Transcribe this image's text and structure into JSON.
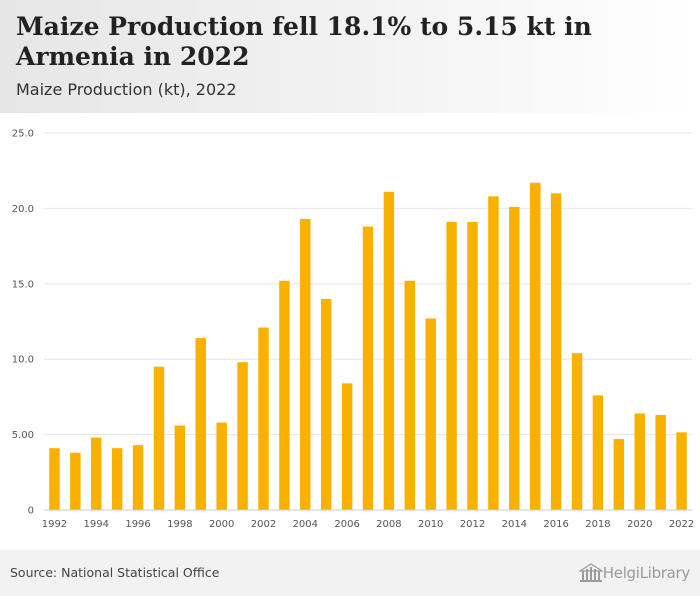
{
  "header": {
    "title": "Maize Production fell 18.1% to 5.15 kt in Armenia in 2022",
    "subtitle": "Maize Production (kt), 2022"
  },
  "footer": {
    "source": "Source: National Statistical Office",
    "brand": "HelgiLibrary"
  },
  "colors": {
    "bar": "#F9B100",
    "grid": "#e6e6e6",
    "axis_text": "#555555"
  },
  "chart_data": {
    "type": "bar",
    "title": "Maize Production fell 18.1% to 5.15 kt in Armenia in 2022",
    "subtitle": "Maize Production (kt), 2022",
    "xlabel": "",
    "ylabel": "",
    "categories": [
      "1992",
      "1993",
      "1994",
      "1995",
      "1996",
      "1997",
      "1998",
      "1999",
      "2000",
      "2001",
      "2002",
      "2003",
      "2004",
      "2005",
      "2006",
      "2007",
      "2008",
      "2009",
      "2010",
      "2011",
      "2012",
      "2013",
      "2014",
      "2015",
      "2016",
      "2017",
      "2018",
      "2019",
      "2020",
      "2021",
      "2022"
    ],
    "x_tick_labels": [
      "1992",
      "1994",
      "1996",
      "1998",
      "2000",
      "2002",
      "2004",
      "2006",
      "2008",
      "2010",
      "2012",
      "2014",
      "2016",
      "2018",
      "2020",
      "2022"
    ],
    "values": [
      4.1,
      3.8,
      4.8,
      4.1,
      4.3,
      9.5,
      5.6,
      11.4,
      5.8,
      9.8,
      12.1,
      15.2,
      19.3,
      14.0,
      8.4,
      18.8,
      21.1,
      15.2,
      12.7,
      19.1,
      19.1,
      20.8,
      20.1,
      21.7,
      21.0,
      10.4,
      7.6,
      4.7,
      6.4,
      6.3,
      5.15
    ],
    "ylim": [
      0,
      25
    ],
    "y_ticks": [
      0,
      5,
      10,
      15,
      20,
      25
    ],
    "y_tick_labels": [
      "0",
      "5.00",
      "10.0",
      "15.0",
      "20.0",
      "25.0"
    ],
    "grid": true,
    "legend": "none"
  }
}
